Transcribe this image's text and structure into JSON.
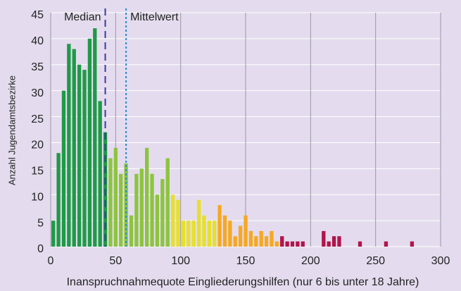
{
  "chart_data": {
    "type": "histogram",
    "xlabel": "Inanspruchnahmequote Eingliederungshilfen (nur 6 bis unter 18 Jahre)",
    "ylabel": "Anzahl Jugendamtsbezirke",
    "bins": [
      0,
      4,
      8,
      12,
      16,
      20,
      24,
      28,
      32,
      36,
      40,
      44,
      48,
      52,
      56,
      60,
      64,
      68,
      72,
      76,
      80,
      84,
      88,
      92,
      96,
      100,
      104,
      108,
      112,
      116,
      120,
      124,
      128,
      132,
      136,
      140,
      144,
      148,
      152,
      156,
      160,
      164,
      168,
      172,
      176,
      180,
      184,
      188,
      192,
      196,
      200,
      204,
      208,
      212,
      216,
      220,
      224,
      228,
      232,
      236,
      240,
      244,
      248,
      252,
      256,
      260,
      264,
      268,
      272,
      276,
      280
    ],
    "counts": [
      5,
      18,
      30,
      39,
      38,
      35,
      34,
      40,
      42,
      28,
      22,
      17,
      19,
      14,
      16,
      6,
      14,
      15,
      19,
      14,
      10,
      13,
      17,
      10,
      9,
      5,
      5,
      5,
      9,
      6,
      5,
      5,
      8,
      6,
      5,
      2,
      4,
      6,
      3,
      2,
      3,
      2,
      3,
      1,
      2,
      1,
      1,
      1,
      1,
      0,
      0,
      0,
      3,
      1,
      2,
      2,
      0,
      0,
      0,
      1,
      0,
      0,
      0,
      0,
      1,
      0,
      0,
      0,
      0,
      1
    ],
    "colors": [
      "#1f9a47",
      "#1f9a47",
      "#1f9a47",
      "#1f9a47",
      "#1f9a47",
      "#1f9a47",
      "#1f9a47",
      "#1f9a47",
      "#1f9a47",
      "#1f9a47",
      "#1f9a47",
      "#8dc43f",
      "#8dc43f",
      "#8dc43f",
      "#8dc43f",
      "#8dc43f",
      "#8dc43f",
      "#8dc43f",
      "#8dc43f",
      "#8dc43f",
      "#8dc43f",
      "#8dc43f",
      "#8dc43f",
      "#e6e02c",
      "#e6e02c",
      "#e6e02c",
      "#e6e02c",
      "#e6e02c",
      "#e6e02c",
      "#e6e02c",
      "#e6e02c",
      "#e6e02c",
      "#f6a824",
      "#f6a824",
      "#f6a824",
      "#f6a824",
      "#f6a824",
      "#f6a824",
      "#f6a824",
      "#f6a824",
      "#f6a824",
      "#f6a824",
      "#f6a824",
      "#f6a824",
      "#b0154c",
      "#b0154c",
      "#b0154c",
      "#b0154c",
      "#b0154c",
      "#b0154c",
      "#b0154c",
      "#b0154c",
      "#b0154c",
      "#b0154c",
      "#b0154c",
      "#b0154c",
      "#b0154c",
      "#b0154c",
      "#b0154c",
      "#b0154c",
      "#b0154c",
      "#b0154c",
      "#b0154c",
      "#b0154c",
      "#b0154c",
      "#b0154c",
      "#b0154c",
      "#b0154c",
      "#b0154c",
      "#b0154c"
    ],
    "reference_lines": [
      {
        "label": "Median",
        "value": 42,
        "color": "#3a3aa0",
        "dash": "10,6"
      },
      {
        "label": "Mittelwert",
        "value": 58,
        "color": "#1a8fd0",
        "dash": "3,3"
      }
    ],
    "xlim": [
      0,
      300
    ],
    "ylim": [
      0,
      45
    ],
    "xticks": [
      0,
      50,
      100,
      150,
      200,
      250,
      300
    ],
    "yticks": [
      0,
      5,
      10,
      15,
      20,
      25,
      30,
      35,
      40,
      45
    ],
    "grid": true
  }
}
